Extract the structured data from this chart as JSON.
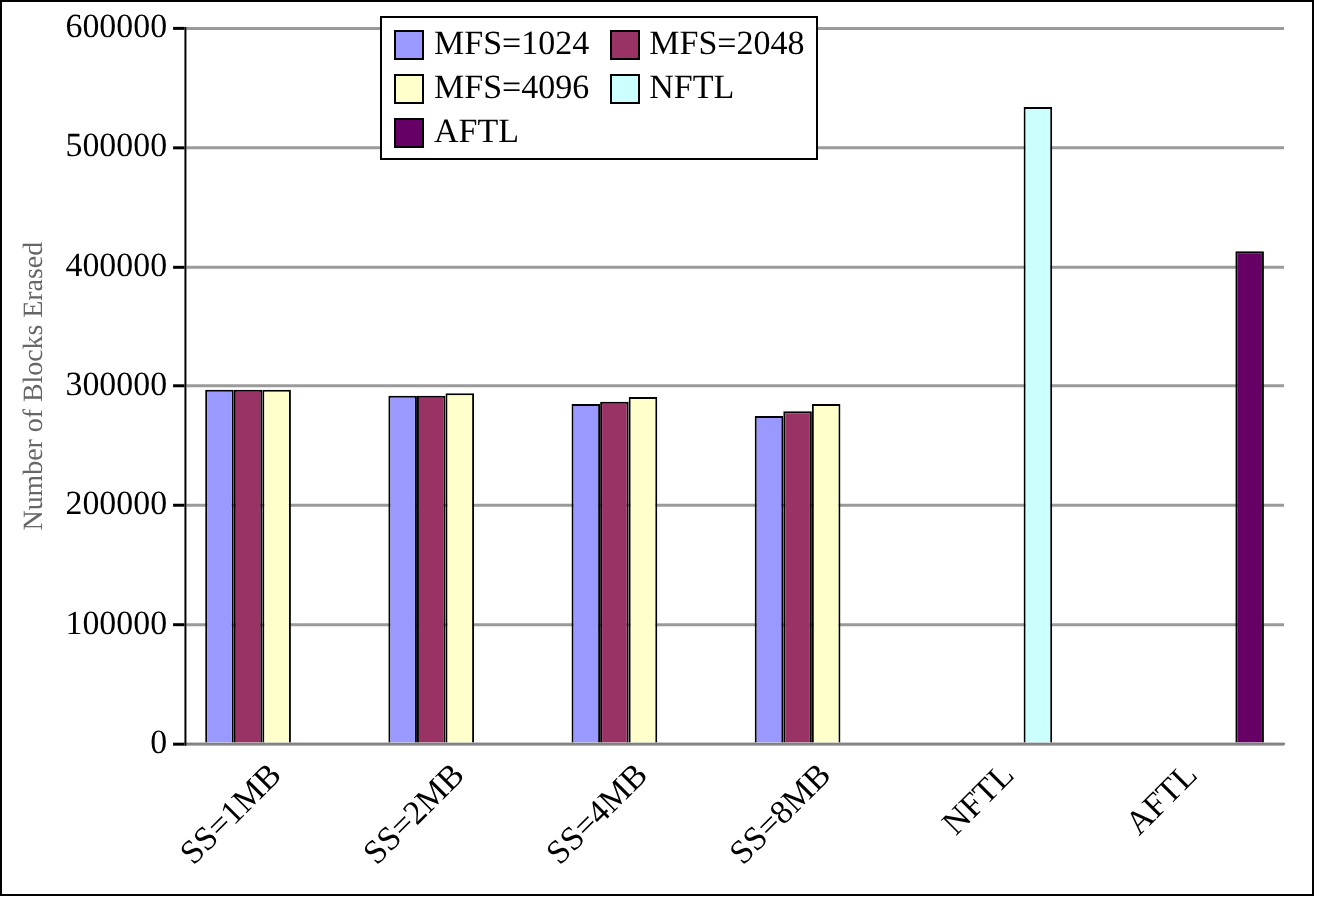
{
  "chart_data": {
    "type": "bar",
    "ylabel": "Number of Blocks Erased",
    "categories": [
      "SS=1MB",
      "SS=2MB",
      "SS=4MB",
      "SS=8MB",
      "NFTL",
      "AFTL"
    ],
    "series": [
      {
        "name": "MFS=1024",
        "color": "#9999ff",
        "values": [
          297000,
          292000,
          285000,
          275000,
          null,
          null
        ]
      },
      {
        "name": "MFS=2048",
        "color": "#993366",
        "values": [
          297000,
          292000,
          287000,
          279000,
          null,
          null
        ]
      },
      {
        "name": "MFS=4096",
        "color": "#ffffcc",
        "values": [
          297000,
          294000,
          291000,
          285000,
          null,
          null
        ]
      },
      {
        "name": "NFTL",
        "color": "#ccffff",
        "values": [
          null,
          null,
          null,
          null,
          534000,
          null
        ]
      },
      {
        "name": "AFTL",
        "color": "#660066",
        "values": [
          null,
          null,
          null,
          null,
          null,
          413000
        ]
      }
    ],
    "ylim": [
      0,
      600000
    ],
    "yticks": [
      0,
      100000,
      200000,
      300000,
      400000,
      500000,
      600000
    ],
    "grid": "y",
    "legend": "top"
  }
}
